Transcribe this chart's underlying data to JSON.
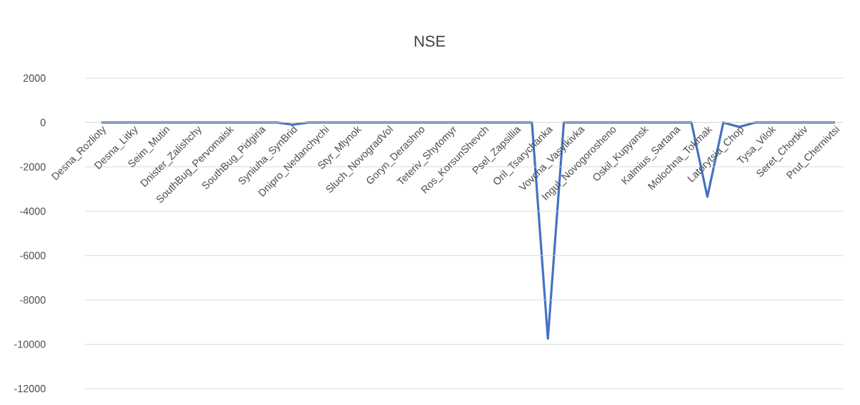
{
  "chart_data": {
    "type": "line",
    "title": "NSE",
    "categories": [
      "Desna_Rozlioty",
      null,
      "Desna_Litky",
      null,
      "Seim_Mutin",
      null,
      "Dnister_Zalishchy",
      null,
      "SouthBug_Pervomaisk",
      null,
      "SouthBug_Pidgiria",
      null,
      "Syniuha_SynBrid",
      null,
      "Dnipro_Nedanchychi",
      null,
      "Styr_Mlynok",
      null,
      "Sluch_NovogradVol",
      null,
      "Goryn_Derashno",
      null,
      "Teteriv_Shytomyr",
      null,
      "Ros_KorsunShevch",
      null,
      "Psel_Zapsillia",
      null,
      "Oril_Tsarychanka",
      null,
      "Vovcha_Vasylkivka",
      null,
      "Ingul_Novogorosheno",
      null,
      "Oskil_Kupyansk",
      null,
      "Kalmius_Sartana",
      null,
      "Molochna_Tokmak",
      null,
      "Latorytsia_Chop",
      null,
      "Tysa_Vilok",
      null,
      "Seret_Chortkiv",
      null,
      "Prut_Chernivtsi"
    ],
    "series": [
      {
        "color": "#4472c4",
        "values": [
          0,
          0,
          0,
          0,
          0,
          0,
          0,
          0,
          0,
          0,
          0,
          0,
          -100,
          0,
          0,
          0,
          0,
          0,
          0,
          0,
          0,
          0,
          0,
          0,
          0,
          0,
          0,
          0,
          -9750,
          0,
          0,
          0,
          0,
          0,
          0,
          0,
          0,
          0,
          -3350,
          0,
          -200,
          0,
          0,
          0,
          0,
          0,
          0
        ]
      }
    ],
    "ylim": [
      -12000,
      2000
    ],
    "yticks": [
      -12000,
      -10000,
      -8000,
      -6000,
      -4000,
      -2000,
      0,
      2000
    ],
    "grid": "y",
    "marker": "none",
    "line_style": "solid"
  }
}
